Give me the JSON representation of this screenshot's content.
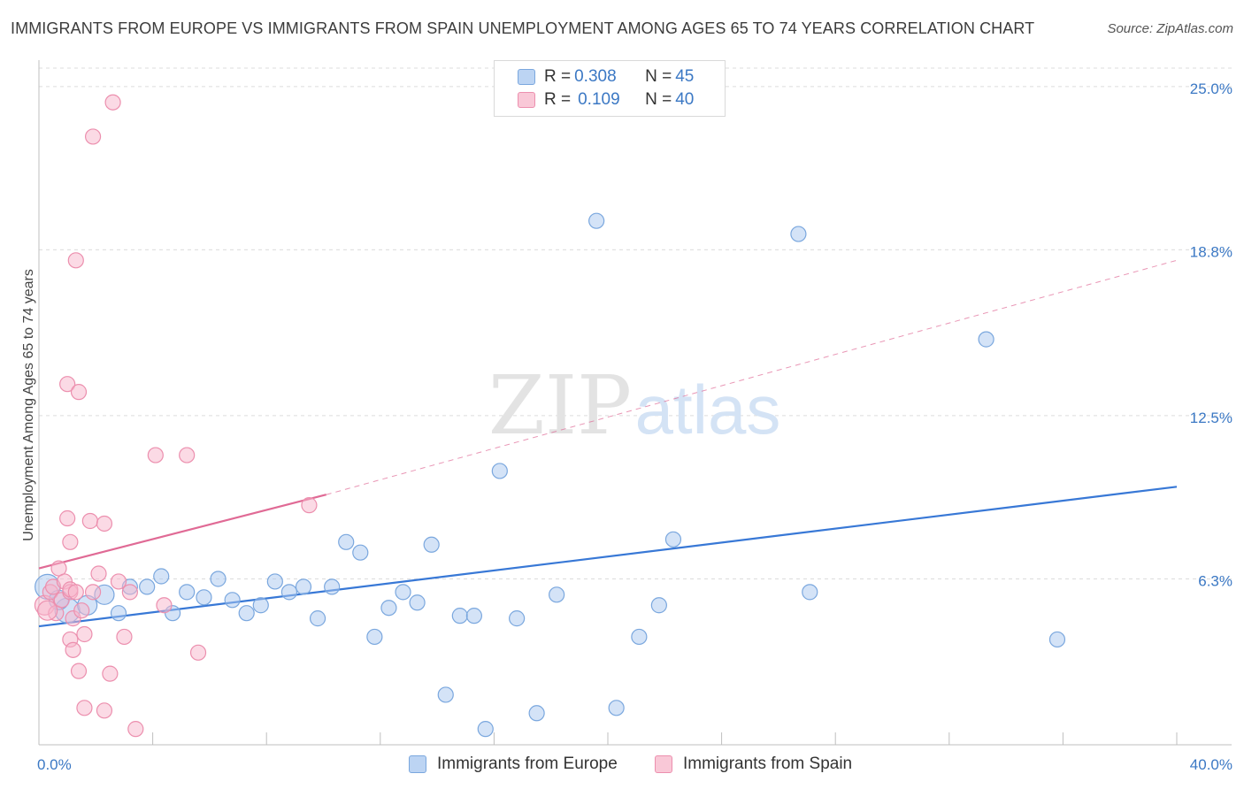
{
  "title": "IMMIGRANTS FROM EUROPE VS IMMIGRANTS FROM SPAIN UNEMPLOYMENT AMONG AGES 65 TO 74 YEARS CORRELATION CHART",
  "source": "Source: ZipAtlas.com",
  "watermark": {
    "zip": "ZIP",
    "atlas": "atlas"
  },
  "colors": {
    "europe_fill": "#a9c8f0",
    "europe_stroke": "#7aa7de",
    "europe_line": "#3878d6",
    "spain_fill": "#f7b6cb",
    "spain_stroke": "#ec8fae",
    "spain_line": "#e06a95",
    "axis_label": "#3b78c4",
    "grid": "#dcdcdc"
  },
  "legend": {
    "europe": {
      "r_label": "R = ",
      "r_value": "0.308",
      "n_label": "N = ",
      "n_value": "45"
    },
    "spain": {
      "r_label": "R = ",
      "r_value": "0.109",
      "n_label": "N = ",
      "n_value": "40"
    }
  },
  "bottom_legend": {
    "europe": "Immigrants from Europe",
    "spain": "Immigrants from Spain"
  },
  "chart_data": {
    "type": "scatter",
    "title": "IMMIGRANTS FROM EUROPE VS IMMIGRANTS FROM SPAIN UNEMPLOYMENT AMONG AGES 65 TO 74 YEARS CORRELATION CHART",
    "xlabel": "",
    "ylabel": "Unemployment Among Ages 65 to 74 years",
    "xlim": [
      0,
      40
    ],
    "ylim": [
      0,
      25.6
    ],
    "x_tick_labels": [
      "0.0%",
      "40.0%"
    ],
    "y_ticks": [
      6.3,
      12.5,
      18.8,
      25.0
    ],
    "y_tick_labels": [
      "6.3%",
      "12.5%",
      "18.8%",
      "25.0%"
    ],
    "grid": true,
    "series": [
      {
        "name": "Immigrants from Europe",
        "points": [
          {
            "x": 0.3,
            "y": 6.0,
            "s": 3
          },
          {
            "x": 1.0,
            "y": 5.1,
            "s": 3
          },
          {
            "x": 1.7,
            "y": 5.3,
            "s": 2
          },
          {
            "x": 2.3,
            "y": 5.7,
            "s": 2
          },
          {
            "x": 2.8,
            "y": 5.0,
            "s": 1
          },
          {
            "x": 3.2,
            "y": 6.0,
            "s": 1
          },
          {
            "x": 3.8,
            "y": 6.0,
            "s": 1
          },
          {
            "x": 4.3,
            "y": 6.4,
            "s": 1
          },
          {
            "x": 4.7,
            "y": 5.0,
            "s": 1
          },
          {
            "x": 5.2,
            "y": 5.8,
            "s": 1
          },
          {
            "x": 5.8,
            "y": 5.6,
            "s": 1
          },
          {
            "x": 6.3,
            "y": 6.3,
            "s": 1
          },
          {
            "x": 6.8,
            "y": 5.5,
            "s": 1
          },
          {
            "x": 7.3,
            "y": 5.0,
            "s": 1
          },
          {
            "x": 7.8,
            "y": 5.3,
            "s": 1
          },
          {
            "x": 8.3,
            "y": 6.2,
            "s": 1
          },
          {
            "x": 8.8,
            "y": 5.8,
            "s": 1
          },
          {
            "x": 9.3,
            "y": 6.0,
            "s": 1
          },
          {
            "x": 9.8,
            "y": 4.8,
            "s": 1
          },
          {
            "x": 10.3,
            "y": 6.0,
            "s": 1
          },
          {
            "x": 10.8,
            "y": 7.7,
            "s": 1
          },
          {
            "x": 11.3,
            "y": 7.3,
            "s": 1
          },
          {
            "x": 11.8,
            "y": 4.1,
            "s": 1
          },
          {
            "x": 12.3,
            "y": 5.2,
            "s": 1
          },
          {
            "x": 12.8,
            "y": 5.8,
            "s": 1
          },
          {
            "x": 13.3,
            "y": 5.4,
            "s": 1
          },
          {
            "x": 13.8,
            "y": 7.6,
            "s": 1
          },
          {
            "x": 14.3,
            "y": 1.9,
            "s": 1
          },
          {
            "x": 14.8,
            "y": 4.9,
            "s": 1
          },
          {
            "x": 15.3,
            "y": 4.9,
            "s": 1
          },
          {
            "x": 15.7,
            "y": 0.6,
            "s": 1
          },
          {
            "x": 16.2,
            "y": 10.4,
            "s": 1
          },
          {
            "x": 16.8,
            "y": 4.8,
            "s": 1
          },
          {
            "x": 17.5,
            "y": 1.2,
            "s": 1
          },
          {
            "x": 18.2,
            "y": 5.7,
            "s": 1
          },
          {
            "x": 19.6,
            "y": 19.9,
            "s": 1
          },
          {
            "x": 20.3,
            "y": 1.4,
            "s": 1
          },
          {
            "x": 21.1,
            "y": 4.1,
            "s": 1
          },
          {
            "x": 21.8,
            "y": 5.3,
            "s": 1
          },
          {
            "x": 22.3,
            "y": 7.8,
            "s": 1
          },
          {
            "x": 27.1,
            "y": 5.8,
            "s": 1
          },
          {
            "x": 26.7,
            "y": 19.4,
            "s": 1
          },
          {
            "x": 33.3,
            "y": 15.4,
            "s": 1
          },
          {
            "x": 35.8,
            "y": 4.0,
            "s": 1
          },
          {
            "x": 0.7,
            "y": 5.5,
            "s": 2
          }
        ],
        "trend": {
          "x": [
            0,
            40
          ],
          "y": [
            4.5,
            9.8
          ],
          "style": "solid"
        }
      },
      {
        "name": "Immigrants from Spain",
        "points": [
          {
            "x": 0.2,
            "y": 5.3,
            "s": 2
          },
          {
            "x": 0.4,
            "y": 5.8,
            "s": 1
          },
          {
            "x": 0.5,
            "y": 6.0,
            "s": 1
          },
          {
            "x": 0.6,
            "y": 5.0,
            "s": 1
          },
          {
            "x": 0.7,
            "y": 6.7,
            "s": 1
          },
          {
            "x": 0.8,
            "y": 5.5,
            "s": 1
          },
          {
            "x": 0.9,
            "y": 6.2,
            "s": 1
          },
          {
            "x": 1.0,
            "y": 8.6,
            "s": 1
          },
          {
            "x": 1.1,
            "y": 4.0,
            "s": 1
          },
          {
            "x": 1.0,
            "y": 13.7,
            "s": 1
          },
          {
            "x": 1.2,
            "y": 3.6,
            "s": 1
          },
          {
            "x": 1.1,
            "y": 5.8,
            "s": 1
          },
          {
            "x": 1.1,
            "y": 5.9,
            "s": 1
          },
          {
            "x": 1.1,
            "y": 7.7,
            "s": 1
          },
          {
            "x": 1.4,
            "y": 2.8,
            "s": 1
          },
          {
            "x": 1.2,
            "y": 4.8,
            "s": 1
          },
          {
            "x": 1.3,
            "y": 5.8,
            "s": 1
          },
          {
            "x": 1.3,
            "y": 18.4,
            "s": 1
          },
          {
            "x": 1.4,
            "y": 13.4,
            "s": 1
          },
          {
            "x": 1.6,
            "y": 4.2,
            "s": 1
          },
          {
            "x": 1.5,
            "y": 5.1,
            "s": 1
          },
          {
            "x": 1.6,
            "y": 1.4,
            "s": 1
          },
          {
            "x": 1.8,
            "y": 8.5,
            "s": 1
          },
          {
            "x": 1.9,
            "y": 23.1,
            "s": 1
          },
          {
            "x": 1.9,
            "y": 5.8,
            "s": 1
          },
          {
            "x": 2.1,
            "y": 6.5,
            "s": 1
          },
          {
            "x": 2.3,
            "y": 1.3,
            "s": 1
          },
          {
            "x": 2.3,
            "y": 8.4,
            "s": 1
          },
          {
            "x": 2.5,
            "y": 2.7,
            "s": 1
          },
          {
            "x": 2.6,
            "y": 24.4,
            "s": 1
          },
          {
            "x": 2.8,
            "y": 6.2,
            "s": 1
          },
          {
            "x": 3.0,
            "y": 4.1,
            "s": 1
          },
          {
            "x": 3.2,
            "y": 5.8,
            "s": 1
          },
          {
            "x": 3.4,
            "y": 0.6,
            "s": 1
          },
          {
            "x": 4.1,
            "y": 11.0,
            "s": 1
          },
          {
            "x": 4.4,
            "y": 5.3,
            "s": 1
          },
          {
            "x": 5.2,
            "y": 11.0,
            "s": 1
          },
          {
            "x": 5.6,
            "y": 3.5,
            "s": 1
          },
          {
            "x": 9.5,
            "y": 9.1,
            "s": 1
          },
          {
            "x": 0.3,
            "y": 5.1,
            "s": 2
          }
        ],
        "trend": {
          "x": [
            0,
            10.1
          ],
          "y": [
            6.7,
            9.5
          ],
          "style": "solid"
        },
        "trend_extension": {
          "x": [
            10.1,
            40
          ],
          "y": [
            9.5,
            18.4
          ],
          "style": "dashed"
        }
      }
    ]
  }
}
